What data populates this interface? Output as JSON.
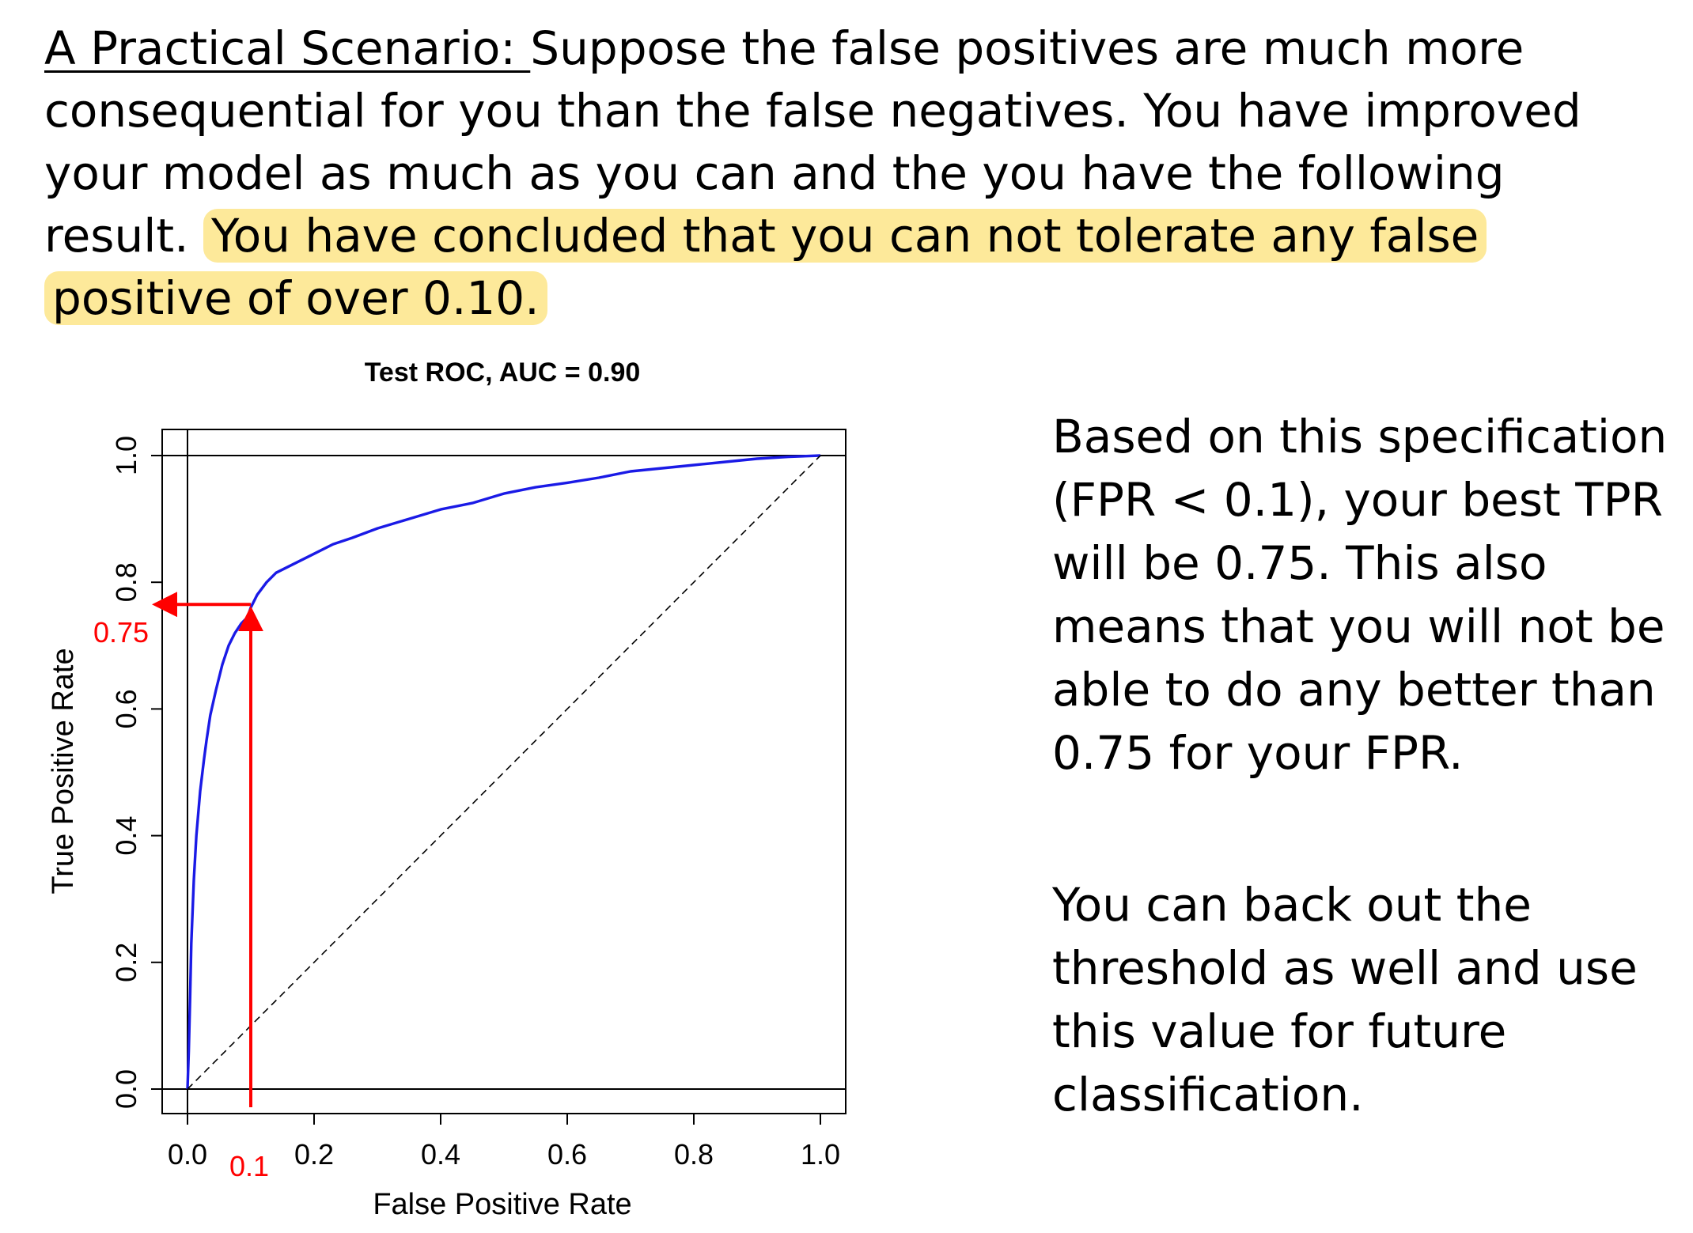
{
  "intro": {
    "lead": "A Practical Scenario: ",
    "body": "Suppose the false positives are much more consequential for you than the false negatives.  You have improved your model as much as you can and the you have the following result.  ",
    "highlight": "You have concluded that you can not tolerate any false positive of over 0.10."
  },
  "chart_data": {
    "type": "line",
    "title": "Test ROC, AUC = 0.90",
    "xlabel": "False Positive Rate",
    "ylabel": "True Positive Rate",
    "xlim": [
      0,
      1
    ],
    "ylim": [
      0,
      1
    ],
    "x_ticks": [
      "0.0",
      "0.2",
      "0.4",
      "0.6",
      "0.8",
      "1.0"
    ],
    "y_ticks": [
      "0.0",
      "0.2",
      "0.4",
      "0.6",
      "0.8",
      "1.0"
    ],
    "grid": false,
    "series": [
      {
        "color": "#1a1ae6",
        "x": [
          0,
          0.002,
          0.004,
          0.006,
          0.01,
          0.014,
          0.02,
          0.026,
          0.03,
          0.036,
          0.045,
          0.055,
          0.065,
          0.075,
          0.085,
          0.095,
          0.1,
          0.11,
          0.125,
          0.14,
          0.16,
          0.18,
          0.2,
          0.23,
          0.26,
          0.3,
          0.35,
          0.4,
          0.45,
          0.5,
          0.55,
          0.6,
          0.65,
          0.7,
          0.75,
          0.8,
          0.85,
          0.9,
          0.95,
          1.0
        ],
        "y": [
          0,
          0.06,
          0.14,
          0.23,
          0.33,
          0.4,
          0.47,
          0.52,
          0.55,
          0.59,
          0.63,
          0.67,
          0.7,
          0.72,
          0.735,
          0.745,
          0.76,
          0.78,
          0.8,
          0.815,
          0.825,
          0.835,
          0.845,
          0.86,
          0.87,
          0.885,
          0.9,
          0.915,
          0.925,
          0.94,
          0.95,
          0.957,
          0.965,
          0.975,
          0.98,
          0.985,
          0.99,
          0.995,
          0.998,
          1.0
        ]
      },
      {
        "color": "#000000",
        "dashed": true,
        "x": [
          0,
          1
        ],
        "y": [
          0,
          1
        ]
      }
    ],
    "annotations": [
      {
        "label": "0.1",
        "x": 0.1,
        "color": "#ff0000"
      },
      {
        "label": "0.75",
        "y": 0.765,
        "color": "#ff0000"
      }
    ]
  },
  "side": {
    "p1": "Based on this specification (FPR < 0.1), your best TPR will be 0.75.  This also means that you will not be able to do any better than 0.75 for your FPR.",
    "p2": "You can back out the threshold as well and use this value for future classification."
  }
}
